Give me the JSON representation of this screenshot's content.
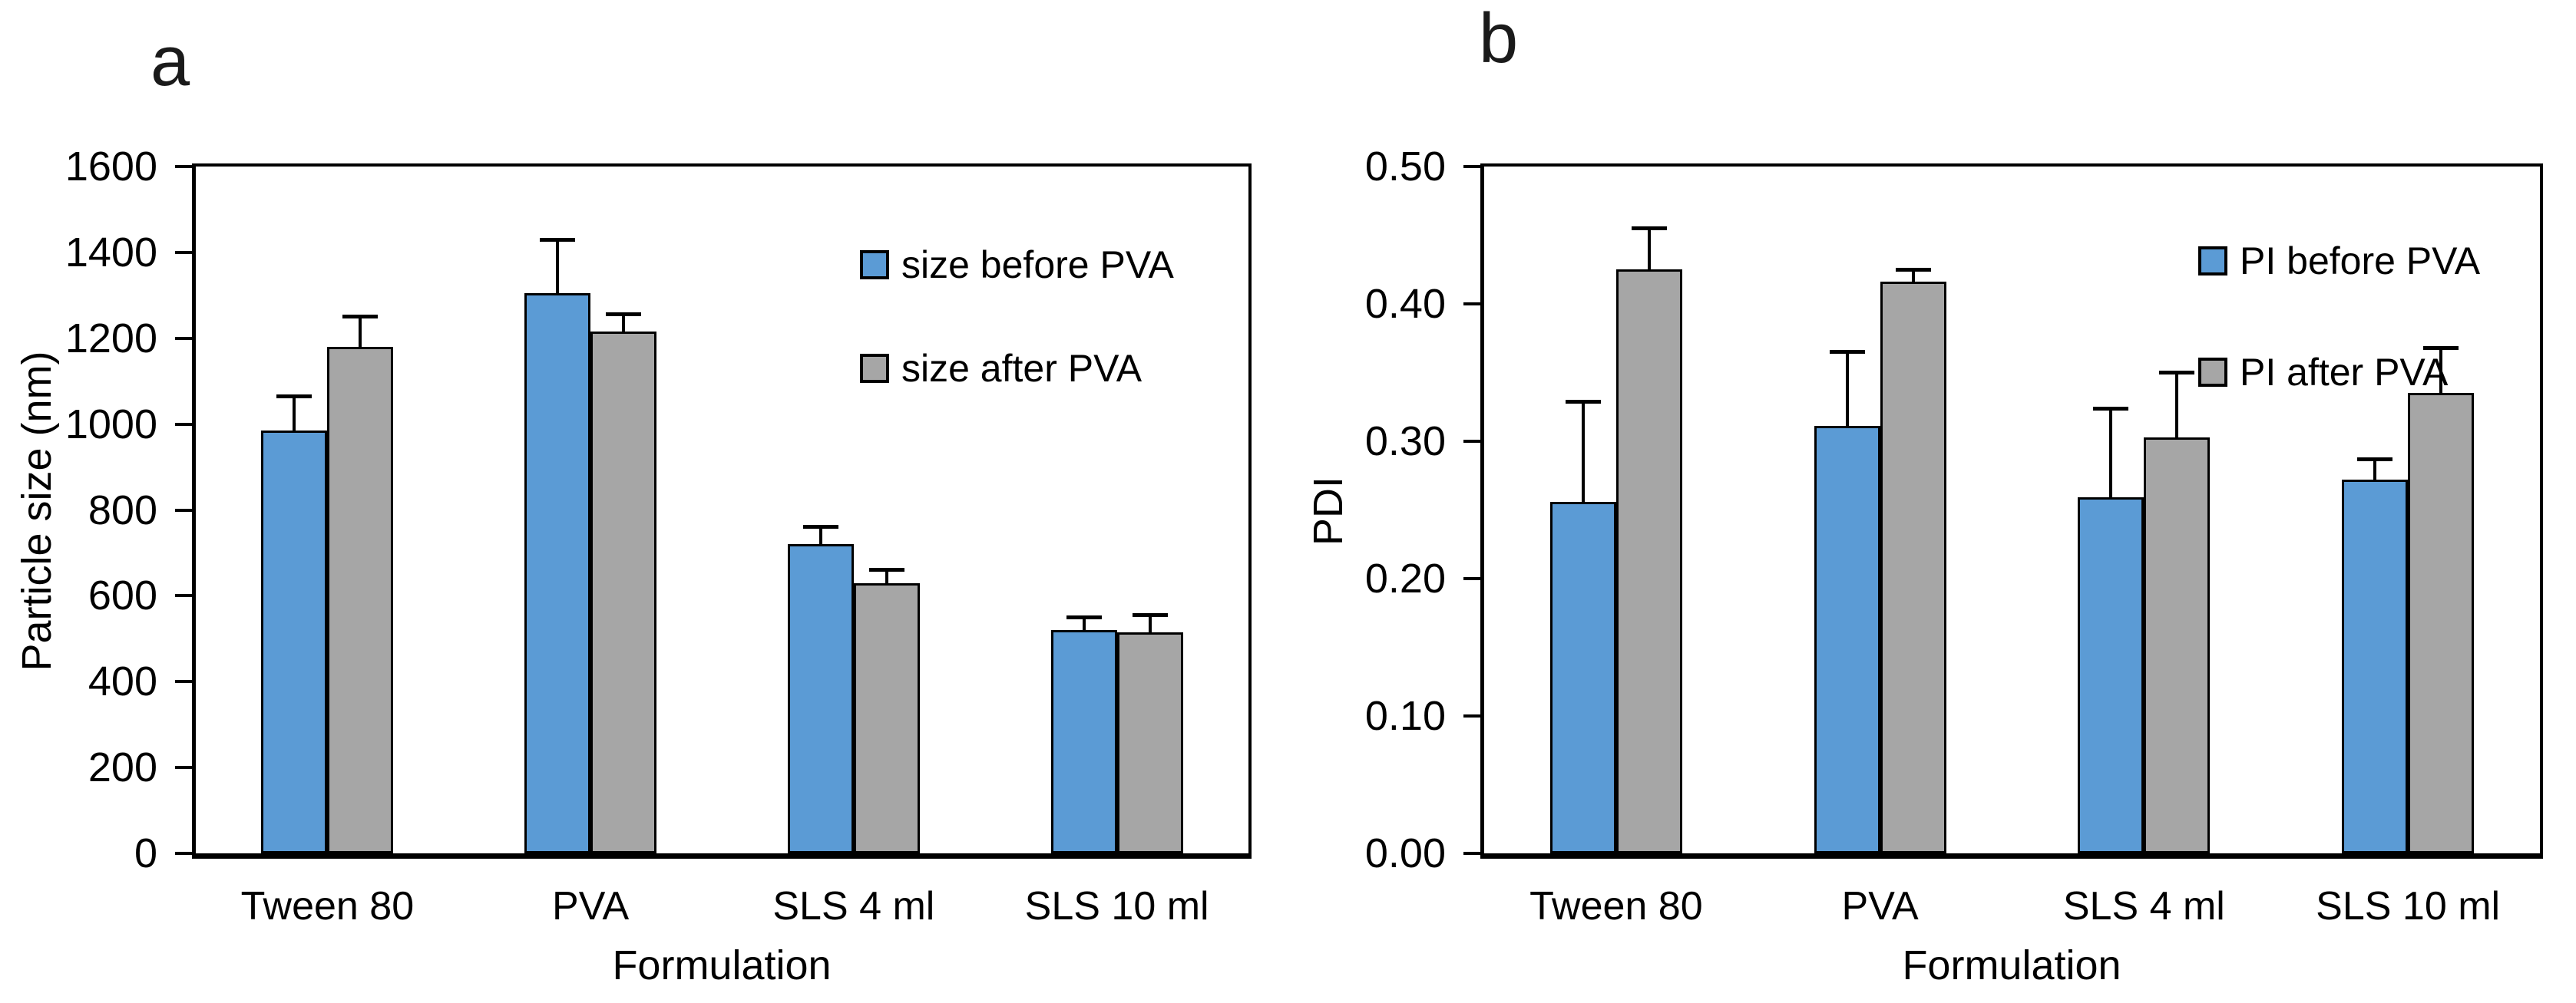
{
  "figure": {
    "background": "#ffffff",
    "bar_border_color": "#000000",
    "blue_color": "#5B9BD5",
    "gray_color": "#A6A6A6"
  },
  "chart_data": [
    {
      "id": "panel-a",
      "panel_letter": "a",
      "type": "bar",
      "title": "",
      "xlabel": "Formulation",
      "ylabel": "Particle size (nm)",
      "ylim": [
        0,
        1600
      ],
      "ytick_step": 200,
      "ytick_labels": [
        "1600",
        "1400",
        "1200",
        "1000",
        "800",
        "600",
        "400",
        "200",
        "0"
      ],
      "categories": [
        "Tween 80",
        "PVA",
        "SLS 4 ml",
        "SLS 10 ml"
      ],
      "series": [
        {
          "name": "size before PVA",
          "color": "#5B9BD5",
          "values": [
            985,
            1305,
            720,
            520
          ],
          "errors_plus": [
            90,
            135,
            50,
            40
          ]
        },
        {
          "name": "size after PVA",
          "color": "#A6A6A6",
          "values": [
            1180,
            1215,
            630,
            515
          ],
          "errors_plus": [
            80,
            50,
            40,
            50
          ]
        }
      ],
      "legend_position": "top-right-inside",
      "grid": false
    },
    {
      "id": "panel-b",
      "panel_letter": "b",
      "type": "bar",
      "title": "",
      "xlabel": "Formulation",
      "ylabel": "PDI",
      "ylim": [
        0,
        0.5
      ],
      "ytick_step": 0.1,
      "ytick_labels": [
        "0.50",
        "0.40",
        "0.30",
        "0.20",
        "0.10",
        "0.00"
      ],
      "categories": [
        "Tween 80",
        "PVA",
        "SLS 4 ml",
        "SLS 10 ml"
      ],
      "series": [
        {
          "name": "PI before PVA",
          "color": "#5B9BD5",
          "values": [
            0.256,
            0.311,
            0.259,
            0.272
          ],
          "errors_plus": [
            0.076,
            0.057,
            0.068,
            0.018
          ]
        },
        {
          "name": "PI after PVA",
          "color": "#A6A6A6",
          "values": [
            0.425,
            0.416,
            0.303,
            0.335
          ],
          "errors_plus": [
            0.033,
            0.012,
            0.05,
            0.036
          ]
        }
      ],
      "legend_position": "top-right-inside",
      "grid": false
    }
  ]
}
